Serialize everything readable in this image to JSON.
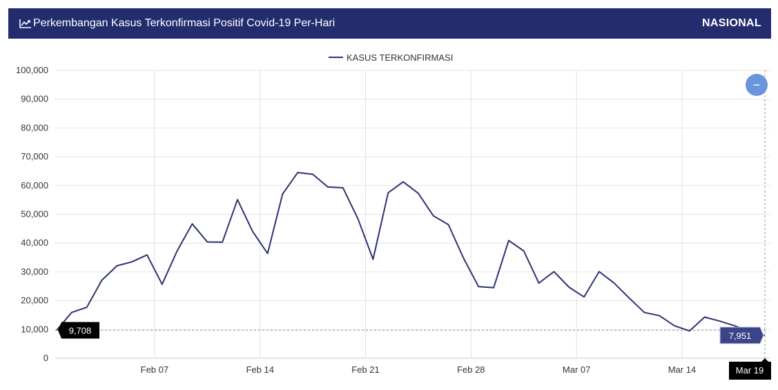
{
  "header": {
    "title": "Perkembangan Kasus Terkonfirmasi Positif Covid-19 Per-Hari",
    "region": "NASIONAL",
    "icon": "line-chart-icon",
    "bg_color": "#232d6e"
  },
  "zoom_button": {
    "icon": "minus-icon",
    "color": "#6a95dd"
  },
  "chart_data": {
    "type": "line",
    "title": "",
    "xlabel": "",
    "ylabel": "",
    "ylim": [
      0,
      100000
    ],
    "yticks": [
      "0",
      "10,000",
      "20,000",
      "30,000",
      "40,000",
      "50,000",
      "60,000",
      "70,000",
      "80,000",
      "90,000",
      "100,000"
    ],
    "xticks": [
      {
        "label": "Feb 07",
        "index": 7
      },
      {
        "label": "Feb 14",
        "index": 14
      },
      {
        "label": "Feb 21",
        "index": 21
      },
      {
        "label": "Feb 28",
        "index": 28
      },
      {
        "label": "Mar 07",
        "index": 35
      },
      {
        "label": "Mar 14",
        "index": 42
      }
    ],
    "grid": true,
    "legend": "top-center",
    "series": [
      {
        "name": "KASUS TERKONFIRMASI",
        "color": "#2b3270",
        "x": [
          "Jan 31",
          "Feb 01",
          "Feb 02",
          "Feb 03",
          "Feb 04",
          "Feb 05",
          "Feb 06",
          "Feb 07",
          "Feb 08",
          "Feb 09",
          "Feb 10",
          "Feb 11",
          "Feb 12",
          "Feb 13",
          "Feb 14",
          "Feb 15",
          "Feb 16",
          "Feb 17",
          "Feb 18",
          "Feb 19",
          "Feb 20",
          "Feb 21",
          "Feb 22",
          "Feb 23",
          "Feb 24",
          "Feb 25",
          "Feb 26",
          "Feb 27",
          "Feb 28",
          "Mar 01",
          "Mar 02",
          "Mar 03",
          "Mar 04",
          "Mar 05",
          "Mar 06",
          "Mar 07",
          "Mar 08",
          "Mar 09",
          "Mar 10",
          "Mar 11",
          "Mar 12",
          "Mar 13",
          "Mar 14",
          "Mar 15",
          "Mar 16",
          "Mar 17",
          "Mar 18",
          "Mar 19"
        ],
        "values": [
          9708,
          15900,
          17700,
          27100,
          32100,
          33500,
          35900,
          25700,
          37300,
          46700,
          40400,
          40300,
          55100,
          44100,
          36400,
          57100,
          64500,
          63900,
          59500,
          59200,
          48400,
          34400,
          57500,
          61300,
          57300,
          49500,
          46400,
          34800,
          24900,
          24500,
          40900,
          37300,
          26100,
          30100,
          24700,
          21300,
          30100,
          26100,
          20900,
          15900,
          14800,
          11300,
          9500,
          14300,
          12900,
          11300,
          9400,
          7951
        ]
      }
    ],
    "crosshair": {
      "y_label": "9,708",
      "x_label": "Mar 19",
      "tooltip": "7,951",
      "tooltip_color": "#3b4389"
    }
  }
}
